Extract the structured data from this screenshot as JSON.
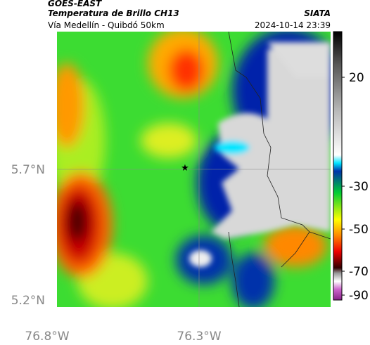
{
  "header": {
    "satellite": "GOES-EAST",
    "product": "Temperatura de Brillo CH13",
    "source": "SIATA",
    "region": "Vía Medellín - Quibdó 50km",
    "timestamp": "2024-10-14 23:39"
  },
  "map": {
    "lat_labels": [
      "5.7°N",
      "5.2°N"
    ],
    "lon_labels": [
      "76.8°W",
      "76.3°W"
    ]
  },
  "colorbar": {
    "ticks": [
      20,
      -30,
      -50,
      -70,
      -90
    ]
  }
}
